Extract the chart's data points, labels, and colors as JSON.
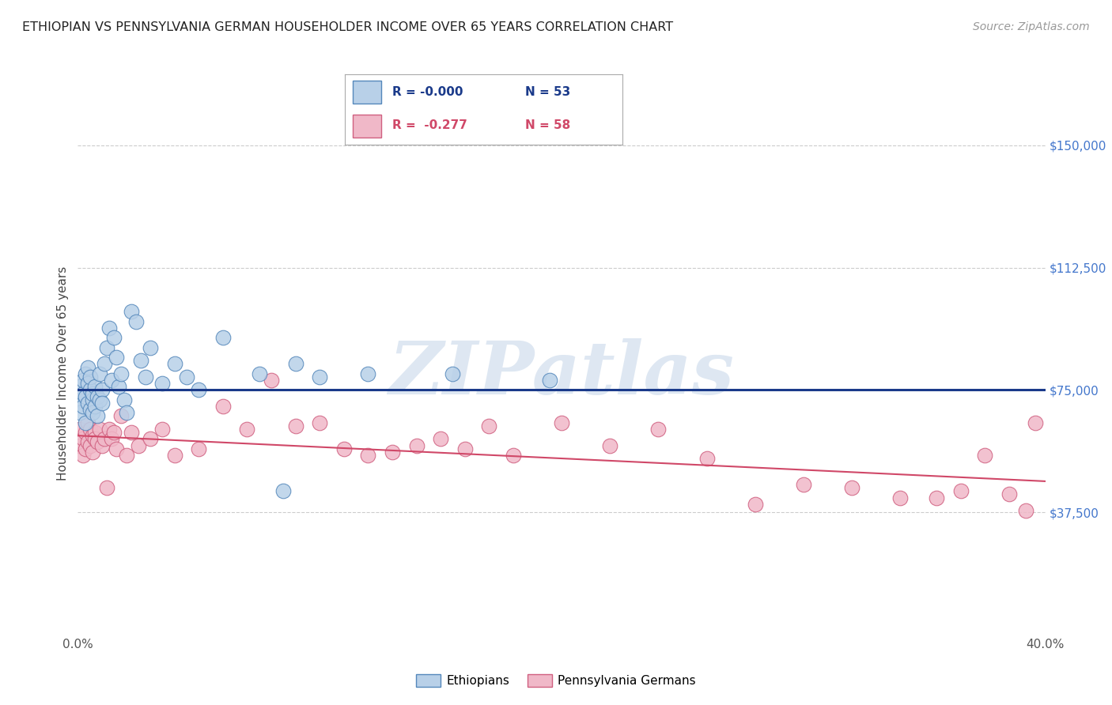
{
  "title": "ETHIOPIAN VS PENNSYLVANIA GERMAN HOUSEHOLDER INCOME OVER 65 YEARS CORRELATION CHART",
  "source": "Source: ZipAtlas.com",
  "ylabel": "Householder Income Over 65 years",
  "xlim": [
    0.0,
    0.4
  ],
  "ylim": [
    0,
    160000
  ],
  "yticks": [
    0,
    37500,
    75000,
    112500,
    150000
  ],
  "ytick_labels": [
    "",
    "$37,500",
    "$75,000",
    "$112,500",
    "$150,000"
  ],
  "xtick_labels": [
    "0.0%",
    "",
    "",
    "",
    "40.0%"
  ],
  "xticks": [
    0.0,
    0.1,
    0.2,
    0.3,
    0.4
  ],
  "watermark": "ZIPatlas",
  "watermark_color": "#c8d8ea",
  "background_color": "#ffffff",
  "grid_color": "#cccccc",
  "ethiopian_color": "#b8d0e8",
  "ethiopian_edge": "#5588bb",
  "pg_color": "#f0b8c8",
  "pg_edge": "#d06080",
  "trend_blue": "#1a3a8a",
  "trend_pink": "#d04868",
  "title_color": "#222222",
  "axis_label_color": "#444444",
  "ytick_color": "#4477cc",
  "source_color": "#999999",
  "ethiopian_x": [
    0.001,
    0.001,
    0.001,
    0.002,
    0.002,
    0.002,
    0.003,
    0.003,
    0.003,
    0.004,
    0.004,
    0.004,
    0.005,
    0.005,
    0.005,
    0.006,
    0.006,
    0.006,
    0.007,
    0.007,
    0.008,
    0.008,
    0.009,
    0.009,
    0.01,
    0.01,
    0.011,
    0.012,
    0.013,
    0.014,
    0.015,
    0.016,
    0.017,
    0.018,
    0.019,
    0.02,
    0.022,
    0.024,
    0.026,
    0.028,
    0.03,
    0.035,
    0.04,
    0.045,
    0.05,
    0.06,
    0.075,
    0.085,
    0.09,
    0.1,
    0.12,
    0.155,
    0.195
  ],
  "ethiopian_y": [
    72000,
    68000,
    76000,
    74000,
    70000,
    78000,
    65000,
    80000,
    73000,
    77000,
    71000,
    82000,
    69000,
    75000,
    79000,
    72000,
    68000,
    74000,
    76000,
    70000,
    73000,
    67000,
    80000,
    72000,
    75000,
    71000,
    83000,
    88000,
    94000,
    78000,
    91000,
    85000,
    76000,
    80000,
    72000,
    68000,
    99000,
    96000,
    84000,
    79000,
    88000,
    77000,
    83000,
    79000,
    75000,
    91000,
    80000,
    44000,
    83000,
    79000,
    80000,
    80000,
    78000
  ],
  "pg_x": [
    0.001,
    0.001,
    0.002,
    0.002,
    0.003,
    0.003,
    0.004,
    0.004,
    0.005,
    0.005,
    0.006,
    0.006,
    0.007,
    0.007,
    0.008,
    0.009,
    0.01,
    0.011,
    0.012,
    0.013,
    0.014,
    0.015,
    0.016,
    0.018,
    0.02,
    0.022,
    0.025,
    0.03,
    0.035,
    0.04,
    0.05,
    0.06,
    0.07,
    0.08,
    0.09,
    0.1,
    0.11,
    0.12,
    0.13,
    0.14,
    0.15,
    0.16,
    0.17,
    0.18,
    0.2,
    0.22,
    0.24,
    0.26,
    0.28,
    0.3,
    0.32,
    0.34,
    0.355,
    0.365,
    0.375,
    0.385,
    0.392,
    0.396
  ],
  "pg_y": [
    58000,
    63000,
    60000,
    55000,
    62000,
    57000,
    65000,
    59000,
    63000,
    58000,
    56000,
    61000,
    62000,
    60000,
    59000,
    63000,
    58000,
    60000,
    45000,
    63000,
    60000,
    62000,
    57000,
    67000,
    55000,
    62000,
    58000,
    60000,
    63000,
    55000,
    57000,
    70000,
    63000,
    78000,
    64000,
    65000,
    57000,
    55000,
    56000,
    58000,
    60000,
    57000,
    64000,
    55000,
    65000,
    58000,
    63000,
    54000,
    40000,
    46000,
    45000,
    42000,
    42000,
    44000,
    55000,
    43000,
    38000,
    65000
  ]
}
